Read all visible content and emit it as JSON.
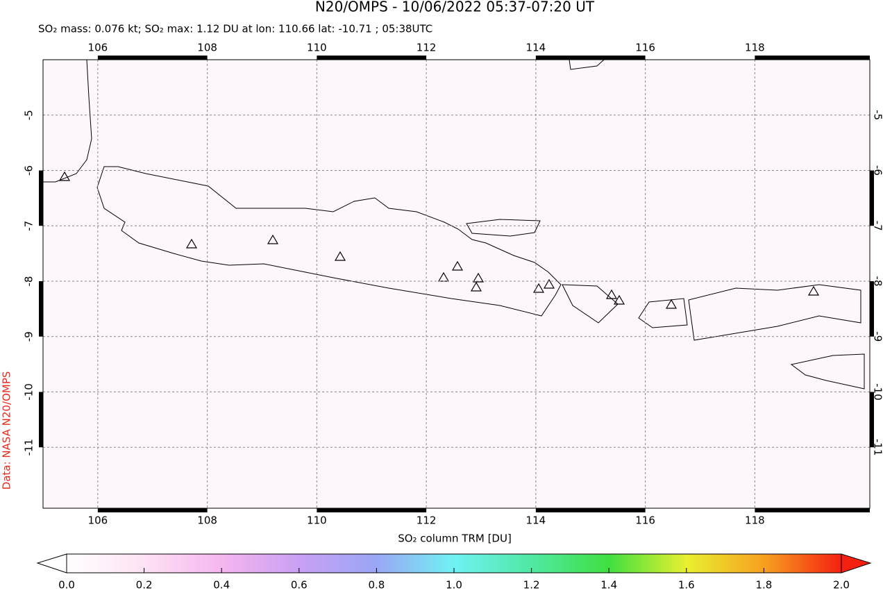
{
  "header": {
    "title": "N20/OMPS - 10/06/2022 05:37-07:20 UT",
    "subtitle": "SO₂ mass: 0.076 kt; SO₂ max: 1.12 DU at lon: 110.66 lat: -10.71 ; 05:38UTC"
  },
  "map": {
    "xlim": [
      105,
      120.1
    ],
    "ylim": [
      -12.1,
      -4
    ],
    "xticks": [
      106,
      108,
      110,
      112,
      114,
      116,
      118
    ],
    "yticks": [
      -5,
      -6,
      -7,
      -8,
      -9,
      -10,
      -11
    ],
    "grid": true
  },
  "colorbar": {
    "label": "SO₂ column TRM [DU]",
    "lim": [
      0,
      2
    ],
    "ticks": [
      {
        "value": 0,
        "label": "0.0"
      },
      {
        "value": 0.2,
        "label": "0.2"
      },
      {
        "value": 0.4,
        "label": "0.4"
      },
      {
        "value": 0.6,
        "label": "0.6"
      },
      {
        "value": 0.8,
        "label": "0.8"
      },
      {
        "value": 1,
        "label": "1.0"
      },
      {
        "value": 1.2,
        "label": "1.2"
      },
      {
        "value": 1.4,
        "label": "1.4"
      },
      {
        "value": 1.6,
        "label": "1.6"
      },
      {
        "value": 1.8,
        "label": "1.8"
      },
      {
        "value": 2,
        "label": "2.0"
      }
    ]
  },
  "credit": "Data: NASA N20/OMPS"
}
